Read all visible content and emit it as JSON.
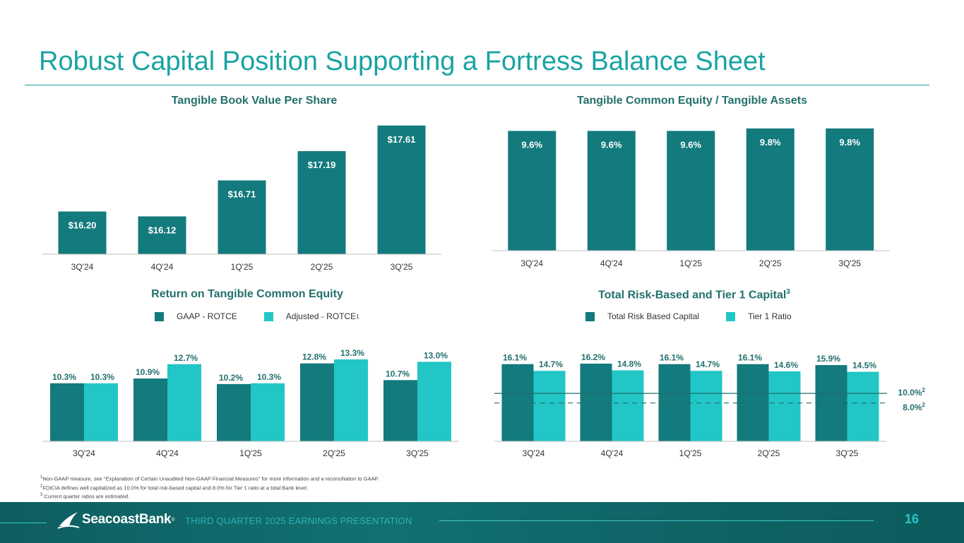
{
  "page": {
    "title": "Robust Capital Position Supporting a Fortress Balance Sheet",
    "footer_text": "THIRD QUARTER 2025 EARNINGS PRESENTATION",
    "page_number": "16",
    "logo_text": "SeacoastBank",
    "logo_mark": "®"
  },
  "colors": {
    "dark_teal": "#137a7d",
    "light_teal": "#22c6c6",
    "title": "#1aa3a3",
    "label": "#22706d"
  },
  "footnotes": [
    {
      "sup": "1",
      "text": "Non-GAAP measure, see \"Explanation of Certain Unaudited Non-GAAP Financial Measures\" for more information and a reconciliation to GAAP."
    },
    {
      "sup": "2",
      "text": "FDICIA defines well capitalized as 10.0% for total risk-based capital and 8.0% for Tier 1 ratio at a total Bank level."
    },
    {
      "sup": "3",
      "text": " Current quarter ratios are estimated."
    }
  ],
  "chart_data": [
    {
      "id": "tbvps",
      "type": "bar",
      "title": "Tangible Book Value Per Share",
      "categories": [
        "3Q'24",
        "4Q'24",
        "1Q'25",
        "2Q'25",
        "3Q'25"
      ],
      "values": [
        16.2,
        16.12,
        16.71,
        17.19,
        17.61
      ],
      "labels": [
        "$16.20",
        "$16.12",
        "$16.71",
        "$17.19",
        "$17.61"
      ],
      "ylim": [
        15.5,
        17.7
      ]
    },
    {
      "id": "tce",
      "type": "bar",
      "title": "Tangible Common Equity / Tangible Assets",
      "categories": [
        "3Q'24",
        "4Q'24",
        "1Q'25",
        "2Q'25",
        "3Q'25"
      ],
      "values": [
        9.6,
        9.6,
        9.6,
        9.8,
        9.8
      ],
      "labels": [
        "9.6%",
        "9.6%",
        "9.6%",
        "9.8%",
        "9.8%"
      ],
      "ylim": [
        0,
        9.85
      ]
    },
    {
      "id": "rotce",
      "type": "bar",
      "title": "Return on Tangible Common Equity",
      "categories": [
        "3Q'24",
        "4Q'24",
        "1Q'25",
        "2Q'25",
        "3Q'25"
      ],
      "series": [
        {
          "name": "GAAP - ROTCE",
          "sup": "",
          "values": [
            10.3,
            10.9,
            10.2,
            12.8,
            10.7
          ],
          "labels": [
            "10.3%",
            "10.9%",
            "10.2%",
            "12.8%",
            "10.7%"
          ]
        },
        {
          "name": "Adjusted - ROTCE",
          "sup": "1",
          "values": [
            10.3,
            12.7,
            10.3,
            13.3,
            13.0
          ],
          "labels": [
            "10.3%",
            "12.7%",
            "10.3%",
            "13.3%",
            "13.0%"
          ]
        }
      ],
      "ylim": [
        3.0,
        13.3
      ]
    },
    {
      "id": "capital",
      "type": "bar",
      "title": "Total Risk-Based and Tier 1 Capital",
      "title_sup": "3",
      "categories": [
        "3Q'24",
        "4Q'24",
        "1Q'25",
        "2Q'25",
        "3Q'25"
      ],
      "series": [
        {
          "name": "Total Risk Based Capital",
          "values": [
            16.1,
            16.2,
            16.1,
            16.1,
            15.9
          ],
          "labels": [
            "16.1%",
            "16.2%",
            "16.1%",
            "16.1%",
            "15.9%"
          ]
        },
        {
          "name": "Tier 1 Ratio",
          "values": [
            14.7,
            14.8,
            14.7,
            14.6,
            14.5
          ],
          "labels": [
            "14.7%",
            "14.8%",
            "14.7%",
            "14.6%",
            "14.5%"
          ]
        }
      ],
      "reference_lines": [
        {
          "value": 10.0,
          "label": "10.0%",
          "sup": "2",
          "style": "solid"
        },
        {
          "value": 8.0,
          "label": "8.0%",
          "sup": "2",
          "style": "dashed"
        }
      ],
      "ylim": [
        0,
        16.2
      ]
    }
  ]
}
